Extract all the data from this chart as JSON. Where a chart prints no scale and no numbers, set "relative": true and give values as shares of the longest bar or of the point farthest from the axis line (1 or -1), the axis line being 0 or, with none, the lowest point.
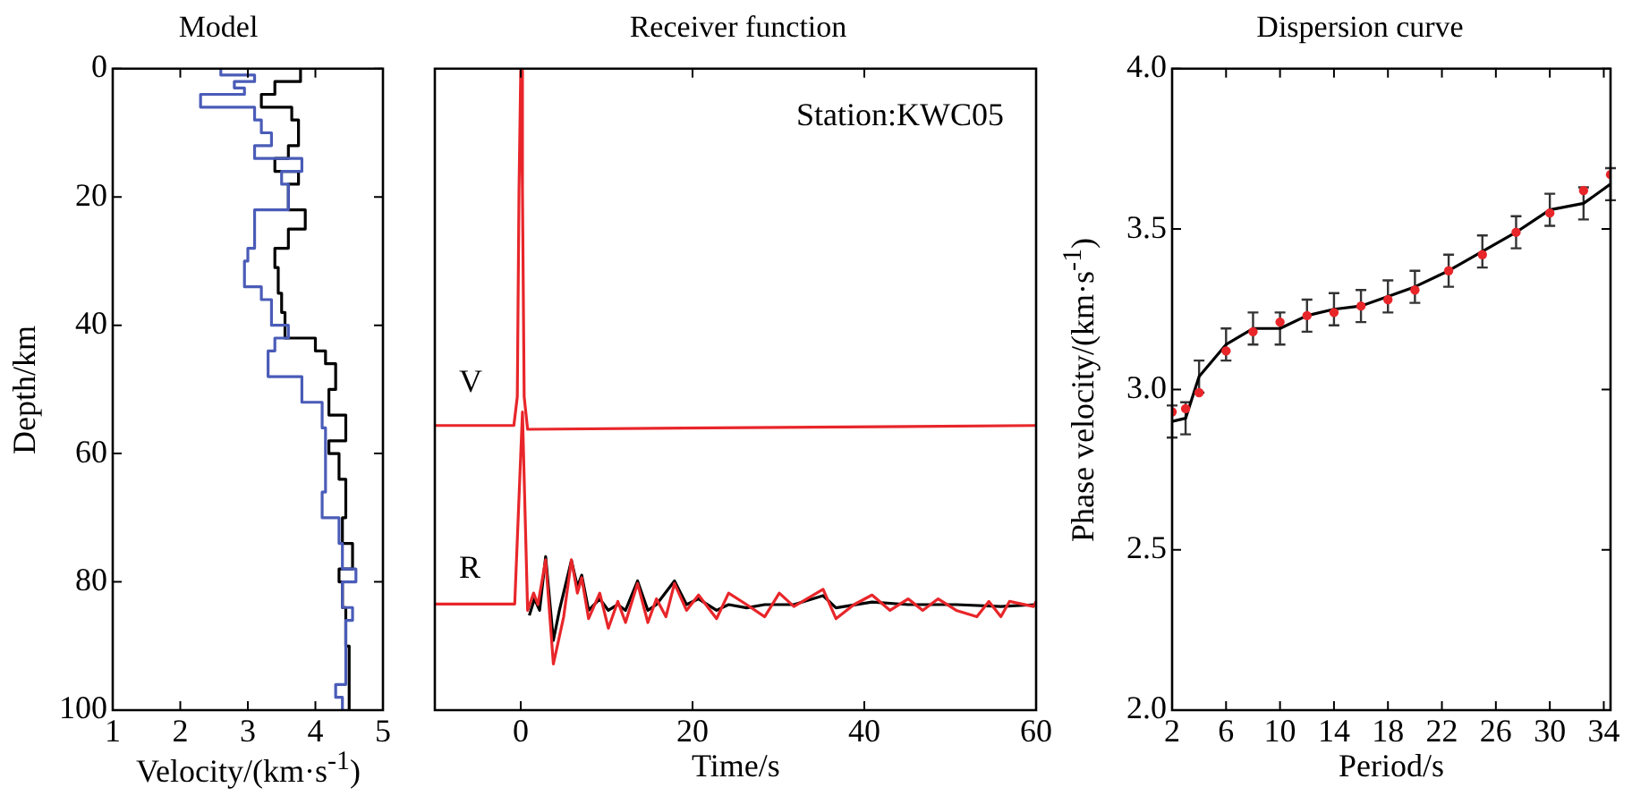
{
  "chart_data": [
    {
      "type": "line",
      "title": "Model",
      "xlabel": "Velocity/(km·s$^{-1}$)",
      "ylabel": "Depth/km",
      "xlim": [
        1,
        5
      ],
      "xticks": [
        1,
        2,
        3,
        4,
        5
      ],
      "ylim": [
        100,
        0
      ],
      "yticks": [
        0,
        20,
        40,
        60,
        80,
        100
      ],
      "series": [
        {
          "color": "#000000",
          "x": [
            3.78,
            3.78,
            3.4,
            3.4,
            3.2,
            3.2,
            3.65,
            3.65,
            3.75,
            3.75,
            3.6,
            3.6,
            3.4,
            3.4,
            3.75,
            3.75,
            3.6,
            3.6,
            3.85,
            3.85,
            3.6,
            3.6,
            3.4,
            3.4,
            3.45,
            3.45,
            3.5,
            3.5,
            3.55,
            3.55,
            4.0,
            4.0,
            4.15,
            4.15,
            4.3,
            4.3,
            4.2,
            4.2,
            4.45,
            4.45,
            4.2,
            4.2,
            4.35,
            4.35,
            4.45,
            4.45,
            4.4,
            4.4,
            4.55,
            4.55,
            4.35,
            4.35,
            4.4,
            4.4,
            4.45,
            4.45,
            4.5,
            4.5
          ],
          "values": [
            0,
            2,
            2,
            4,
            4,
            6,
            6,
            8,
            8,
            12,
            12,
            14,
            14,
            16,
            16,
            18,
            18,
            22,
            22,
            25,
            25,
            28,
            28,
            31,
            31,
            35,
            35,
            38,
            38,
            42,
            42,
            44,
            44,
            46,
            46,
            50,
            50,
            54,
            54,
            58,
            58,
            60,
            60,
            64,
            64,
            70,
            70,
            74,
            74,
            78,
            78,
            80,
            80,
            84,
            84,
            90,
            90,
            100
          ]
        },
        {
          "color": "#4a5cb8",
          "x": [
            2.6,
            2.6,
            3.1,
            3.1,
            2.8,
            2.8,
            2.95,
            2.95,
            2.3,
            2.3,
            3.1,
            3.1,
            3.2,
            3.2,
            3.35,
            3.35,
            3.1,
            3.1,
            3.8,
            3.8,
            3.5,
            3.5,
            3.6,
            3.6,
            3.1,
            3.1,
            3.0,
            3.0,
            2.95,
            2.95,
            3.2,
            3.2,
            3.35,
            3.35,
            3.6,
            3.6,
            3.4,
            3.4,
            3.3,
            3.3,
            3.8,
            3.8,
            4.1,
            4.1,
            4.15,
            4.15,
            4.1,
            4.1,
            4.35,
            4.35,
            4.4,
            4.4,
            4.6,
            4.6,
            4.4,
            4.4,
            4.55,
            4.55,
            4.45,
            4.45,
            4.3,
            4.3,
            4.4,
            4.4
          ],
          "values": [
            0,
            1,
            1,
            2,
            2,
            3,
            3,
            4,
            4,
            6,
            6,
            8,
            8,
            10,
            10,
            12,
            12,
            14,
            14,
            16,
            16,
            18,
            18,
            22,
            22,
            28,
            28,
            30,
            30,
            34,
            34,
            36,
            36,
            40,
            40,
            42,
            42,
            44,
            44,
            48,
            48,
            52,
            52,
            56,
            56,
            66,
            66,
            70,
            70,
            74,
            74,
            78,
            78,
            80,
            80,
            84,
            84,
            86,
            86,
            96,
            96,
            98,
            98,
            100
          ]
        }
      ]
    },
    {
      "type": "line",
      "title": "Receiver function",
      "xlabel": "Time/s",
      "xlim": [
        -10,
        60
      ],
      "xticks": [
        0,
        20,
        40,
        60
      ],
      "relative": true,
      "tick_labels": "x",
      "annotations": [
        "V",
        "R",
        "Station:KWC05"
      ],
      "series": [
        {
          "color": "#e8262a",
          "x": [
            -10,
            -0.8,
            -0.4,
            -0.2,
            0,
            0.2,
            0.4,
            0.8,
            60
          ],
          "values": [
            0.445,
            0.445,
            0.49,
            0.814,
            1,
            0.814,
            0.49,
            0.439,
            0.445
          ]
        },
        {
          "color": "#000000",
          "x": [
            1.0,
            1.6,
            2.2,
            2.9,
            3.8,
            4.5,
            5.9,
            6.6,
            7.1,
            7.9,
            9.2,
            10.2,
            11.3,
            12.2,
            13.6,
            14.8,
            15.8,
            17.9,
            19.3,
            20.7,
            22.8,
            24.2,
            26.3,
            28.4,
            31.8,
            35.2,
            36.7,
            40.9,
            45.1,
            50.7,
            55.9,
            60
          ],
          "values": [
            0.148,
            0.174,
            0.156,
            0.24,
            0.109,
            0.156,
            0.234,
            0.193,
            0.211,
            0.156,
            0.174,
            0.156,
            0.165,
            0.156,
            0.202,
            0.156,
            0.165,
            0.202,
            0.165,
            0.174,
            0.156,
            0.165,
            0.16,
            0.165,
            0.165,
            0.179,
            0.16,
            0.169,
            0.165,
            0.165,
            0.162,
            0.165
          ]
        },
        {
          "color": "#e8262a",
          "x": [
            -10,
            -0.7,
            0.2,
            0.8,
            1.5,
            2.0,
            2.9,
            3.8,
            5.0,
            5.9,
            6.6,
            7.1,
            7.9,
            9.2,
            10.2,
            11.3,
            12.2,
            13.6,
            14.8,
            15.8,
            16.9,
            17.9,
            19.3,
            20.7,
            22.8,
            24.2,
            26.3,
            28.4,
            30.1,
            31.8,
            35.2,
            36.7,
            38.8,
            40.9,
            43.0,
            45.1,
            46.8,
            48.6,
            50.7,
            53.1,
            54.5,
            55.9,
            56.9,
            59.7,
            60
          ],
          "values": [
            0.166,
            0.166,
            0.466,
            0.156,
            0.183,
            0.165,
            0.235,
            0.072,
            0.146,
            0.235,
            0.183,
            0.207,
            0.143,
            0.183,
            0.128,
            0.17,
            0.137,
            0.198,
            0.137,
            0.174,
            0.146,
            0.198,
            0.156,
            0.18,
            0.143,
            0.183,
            0.165,
            0.146,
            0.183,
            0.162,
            0.189,
            0.143,
            0.165,
            0.18,
            0.156,
            0.174,
            0.156,
            0.174,
            0.156,
            0.146,
            0.17,
            0.146,
            0.17,
            0.162,
            0.17
          ]
        }
      ]
    },
    {
      "type": "line",
      "title": "Dispersion curve",
      "xlabel": "Period/s",
      "ylabel": "Phase velocity/(km·s$^{-1}$)",
      "xlim": [
        2,
        34.5
      ],
      "xticks": [
        2,
        6,
        10,
        14,
        18,
        22,
        26,
        30,
        34
      ],
      "ylim": [
        2,
        4
      ],
      "yticks": [
        {
          "value": 2,
          "label": "2.0"
        },
        2.5,
        {
          "value": 3,
          "label": "3.0"
        },
        3.5,
        {
          "value": 4,
          "label": "4.0"
        }
      ],
      "series": [
        {
          "type": "line",
          "color": "#000000",
          "x": [
            2,
            3,
            4,
            6,
            8,
            10,
            12,
            14,
            16,
            18,
            20,
            22.5,
            25,
            27.5,
            30,
            32.5,
            34.5
          ],
          "values": [
            2.9,
            2.91,
            3.04,
            3.14,
            3.19,
            3.19,
            3.23,
            3.25,
            3.26,
            3.29,
            3.32,
            3.37,
            3.43,
            3.49,
            3.56,
            3.58,
            3.64
          ],
          "errors": [
            0.05,
            0.05,
            0.05,
            0.05,
            0.05,
            0.05,
            0.05,
            0.05,
            0.05,
            0.05,
            0.05,
            0.05,
            0.05,
            0.05,
            0.05,
            0.05,
            0.05
          ]
        },
        {
          "type": "scatter",
          "color": "#e8262a",
          "x": [
            2,
            3,
            4,
            6,
            8,
            10,
            12,
            14,
            16,
            18,
            20,
            22.5,
            25,
            27.5,
            30,
            32.5,
            34.5
          ],
          "values": [
            2.93,
            2.94,
            2.99,
            3.12,
            3.18,
            3.21,
            3.23,
            3.24,
            3.26,
            3.28,
            3.31,
            3.37,
            3.42,
            3.49,
            3.55,
            3.62,
            3.67
          ]
        }
      ]
    }
  ]
}
